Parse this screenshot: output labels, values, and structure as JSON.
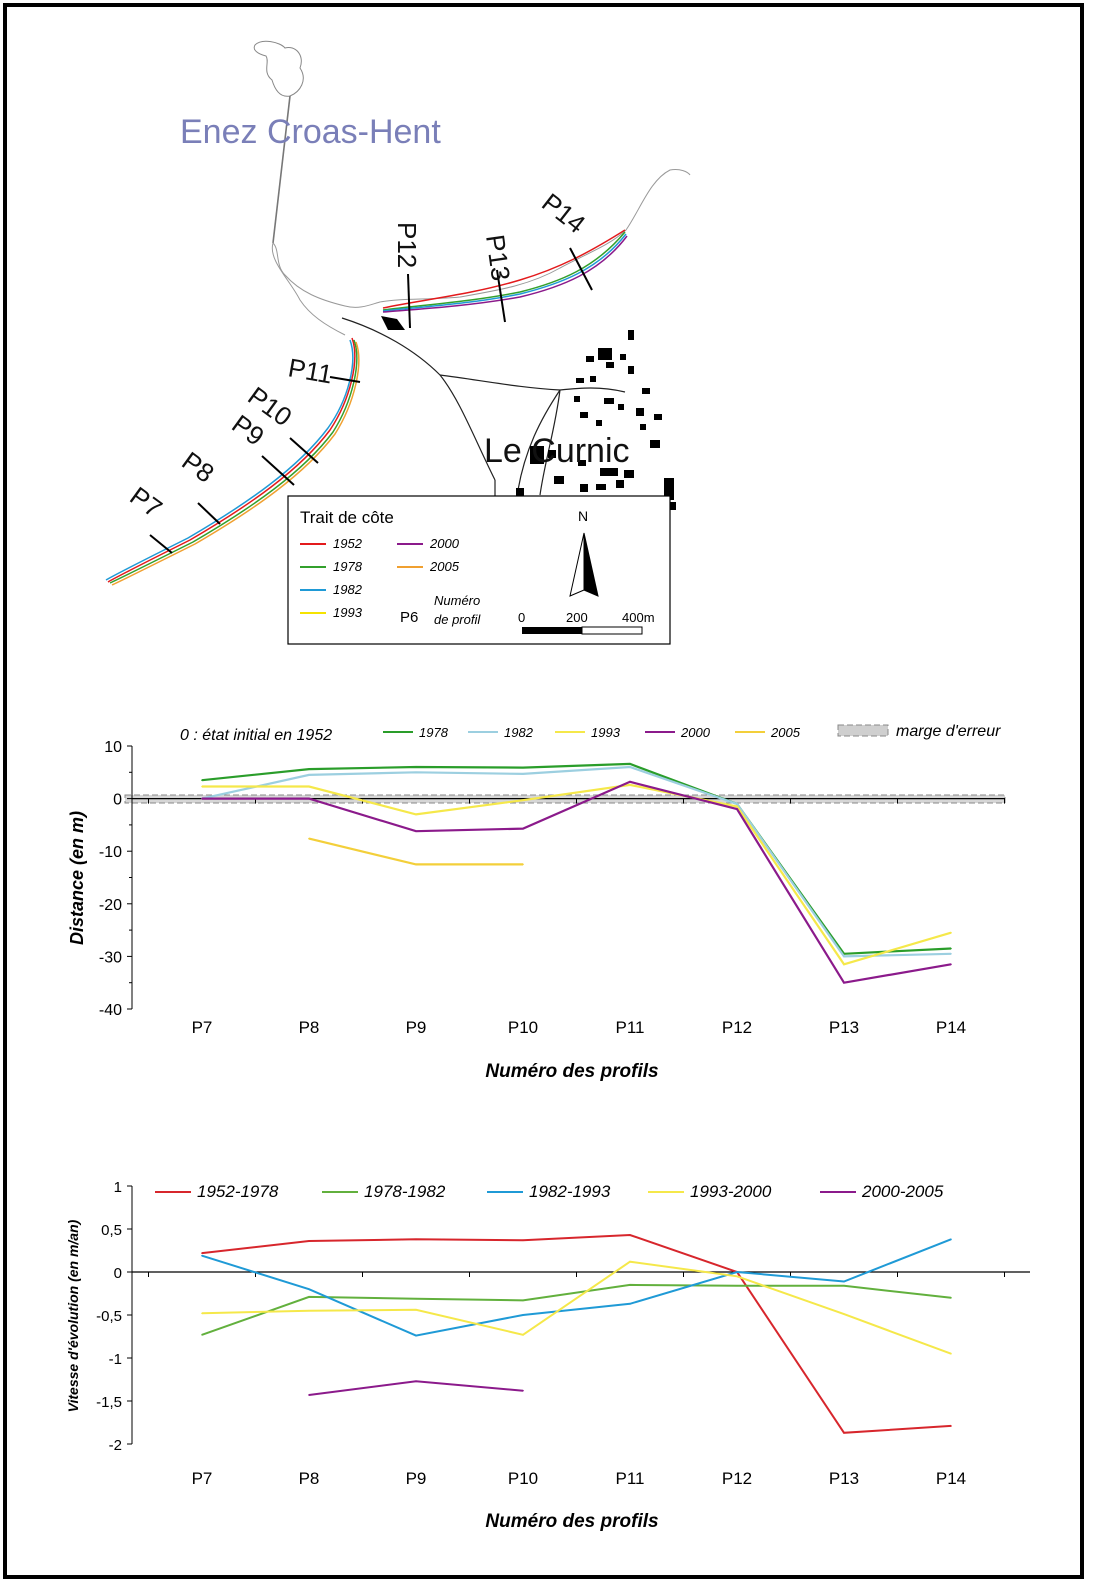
{
  "map": {
    "island_label": "Enez Croas-Hent",
    "village_label": "Le Curnic",
    "profiles": [
      "P7",
      "P8",
      "P9",
      "P10",
      "P11",
      "P12",
      "P13",
      "P14"
    ],
    "legend": {
      "title": "Trait de côte",
      "items": [
        {
          "year": "1952",
          "color": "#e31a1c"
        },
        {
          "year": "1978",
          "color": "#33a02c"
        },
        {
          "year": "1982",
          "color": "#1f9ad6"
        },
        {
          "year": "1993",
          "color": "#f5e300"
        },
        {
          "year": "2000",
          "color": "#8b1a8b"
        },
        {
          "year": "2005",
          "color": "#f0a030"
        }
      ],
      "profile_key": "P6",
      "profile_key_text_1": "Numéro",
      "profile_key_text_2": "de profil",
      "north": "N",
      "scale_0": "0",
      "scale_200": "200",
      "scale_400": "400m"
    }
  },
  "chart_data": [
    {
      "type": "line",
      "note": "0 : état initial en 1952",
      "error_band_label": "marge d'erreur",
      "categories": [
        "P7",
        "P8",
        "P9",
        "P10",
        "P11",
        "P12",
        "P13",
        "P14"
      ],
      "xlabel": "Numéro des profils",
      "ylabel": "Distance (en m)",
      "ylim": [
        -40,
        10
      ],
      "yticks": [
        "10",
        "0",
        "-10",
        "-20",
        "-30",
        "-40"
      ],
      "series": [
        {
          "name": "1978",
          "color": "#2a9d2a",
          "values": [
            3.5,
            5.6,
            6,
            5.9,
            6.6,
            -1,
            -29.5,
            -28.5
          ]
        },
        {
          "name": "1982",
          "color": "#9ccfe0",
          "values": [
            0,
            4.5,
            5,
            4.7,
            6,
            -1,
            -30,
            -29.5
          ]
        },
        {
          "name": "1993",
          "color": "#f5e84a",
          "values": [
            2.3,
            2.3,
            -3,
            -0.3,
            2.6,
            -1.5,
            -31.5,
            -25.5
          ]
        },
        {
          "name": "2000",
          "color": "#8b1a8b",
          "values": [
            0,
            0,
            -6.2,
            -5.7,
            3.2,
            -2,
            -35,
            -31.5
          ]
        },
        {
          "name": "2005",
          "color": "#f3cf3a",
          "values": [
            null,
            -7.6,
            -12.5,
            -12.5,
            null,
            null,
            null,
            null
          ]
        }
      ]
    },
    {
      "type": "line",
      "categories": [
        "P7",
        "P8",
        "P9",
        "P10",
        "P11",
        "P12",
        "P13",
        "P14"
      ],
      "xlabel": "Numéro des profils",
      "ylabel": "Vitesse d'évolution (en m/an)",
      "ylim": [
        -2,
        1
      ],
      "yticks": [
        "1",
        "0,5",
        "0",
        "-0,5",
        "-1",
        "-1,5",
        "-2"
      ],
      "series": [
        {
          "name": "1952-1978",
          "color": "#d7262c",
          "values": [
            0.22,
            0.36,
            0.38,
            0.37,
            0.43,
            0,
            -1.87,
            -1.79
          ]
        },
        {
          "name": "1978-1982",
          "color": "#62b03d",
          "values": [
            -0.73,
            -0.29,
            -0.31,
            -0.33,
            -0.15,
            -0.16,
            -0.16,
            -0.3
          ]
        },
        {
          "name": "1982-1993",
          "color": "#1f9ad6",
          "values": [
            0.19,
            -0.2,
            -0.74,
            -0.5,
            -0.37,
            0,
            -0.11,
            0.38
          ]
        },
        {
          "name": "1993-2000",
          "color": "#f5e84a",
          "values": [
            -0.48,
            -0.45,
            -0.44,
            -0.73,
            0.12,
            -0.05,
            -0.49,
            -0.95
          ]
        },
        {
          "name": "2000-2005",
          "color": "#8b1a8b",
          "values": [
            null,
            -1.43,
            -1.27,
            -1.38,
            null,
            null,
            null,
            null
          ]
        }
      ]
    }
  ]
}
